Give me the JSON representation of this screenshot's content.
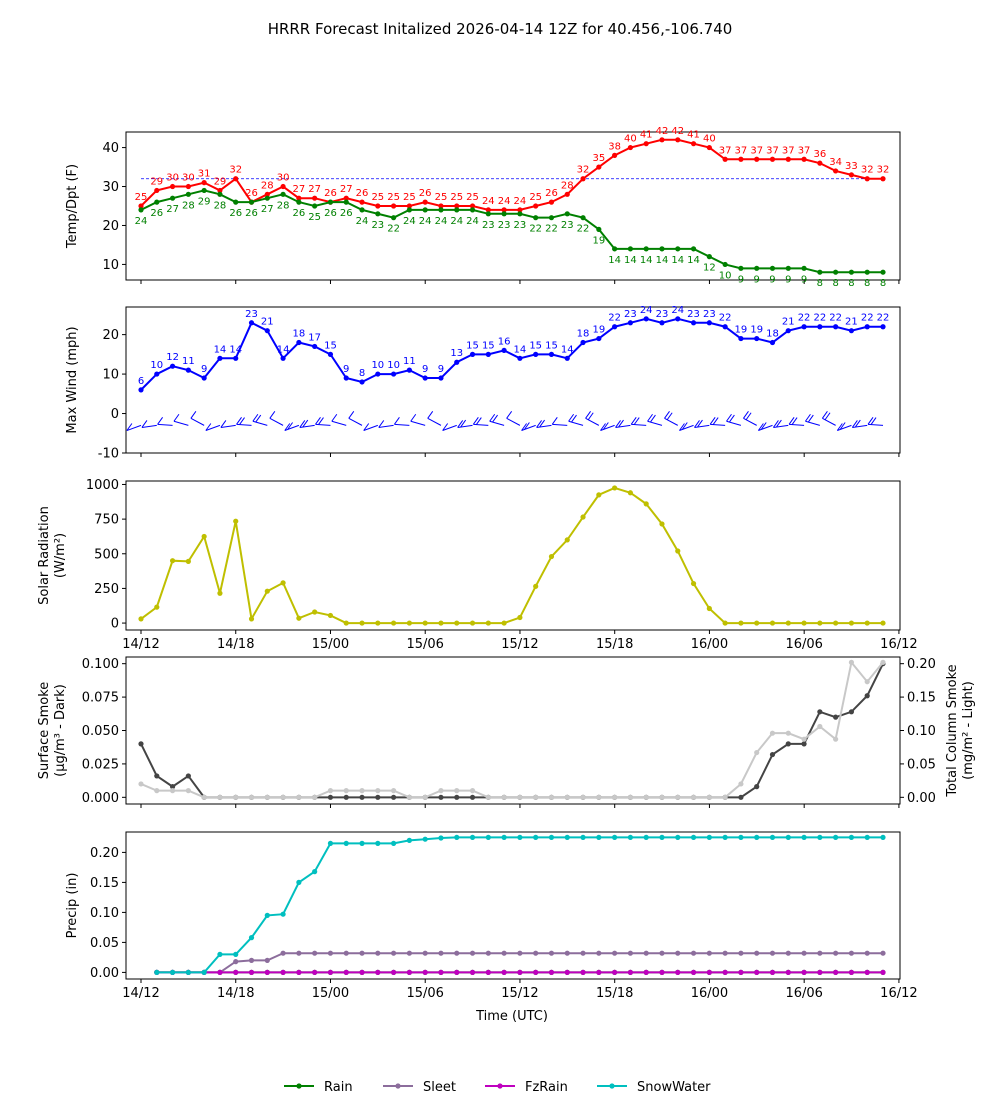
{
  "figure": {
    "title": "HRRR Forecast Initalized 2026-04-14 12Z for 40.456,-106.740",
    "xlabel": "Time (UTC)"
  },
  "legend": {
    "placement": "bottom-center",
    "entries": [
      {
        "label": "Rain",
        "color": "#008000"
      },
      {
        "label": "Sleet",
        "color": "#8c6d9c"
      },
      {
        "label": "FzRain",
        "color": "#bf00bf"
      },
      {
        "label": "SnowWater",
        "color": "#00bfbf"
      }
    ]
  },
  "chart_data": [
    {
      "type": "line",
      "id": "temp",
      "ylabel": "Temp/Dpt (F)",
      "ylim": [
        6,
        44
      ],
      "yticks": [
        10,
        20,
        30,
        40
      ],
      "hline": {
        "value": 32,
        "color": "#0000ff",
        "style": "dashed"
      },
      "series": [
        {
          "name": "Temp",
          "color": "#ff0000",
          "labels": "above",
          "values": [
            25,
            29,
            30,
            30,
            31,
            29,
            32,
            26,
            28,
            30,
            27,
            27,
            26,
            27,
            26,
            25,
            25,
            25,
            26,
            25,
            25,
            25,
            24,
            24,
            24,
            25,
            26,
            28,
            32,
            35,
            38,
            40,
            41,
            42,
            42,
            41,
            40,
            37,
            37,
            37,
            37,
            37,
            37,
            36,
            34,
            33,
            32,
            32
          ]
        },
        {
          "name": "Dewpoint",
          "color": "#008000",
          "labels": "below",
          "values": [
            24,
            26,
            27,
            28,
            29,
            28,
            26,
            26,
            27,
            28,
            26,
            25,
            26,
            26,
            24,
            23,
            22,
            24,
            24,
            24,
            24,
            24,
            23,
            23,
            23,
            22,
            22,
            23,
            22,
            19,
            14,
            14,
            14,
            14,
            14,
            14,
            12,
            10,
            9,
            9,
            9,
            9,
            9,
            8,
            8,
            8,
            8,
            8
          ]
        }
      ]
    },
    {
      "type": "line",
      "id": "wind",
      "ylabel": "Max Wind (mph)",
      "ylim": [
        -10,
        27
      ],
      "yticks": [
        -10,
        0,
        10,
        20
      ],
      "series": [
        {
          "name": "Max Wind",
          "color": "#0000ff",
          "labels": "above",
          "values": [
            6,
            10,
            12,
            11,
            9,
            14,
            14,
            23,
            21,
            14,
            18,
            17,
            15,
            9,
            8,
            10,
            10,
            11,
            9,
            9,
            13,
            15,
            15,
            16,
            14,
            15,
            15,
            14,
            18,
            19,
            22,
            23,
            24,
            23,
            24,
            23,
            23,
            22,
            19,
            19,
            18,
            21,
            22,
            22,
            22,
            21,
            22,
            22
          ]
        }
      ],
      "wind_barbs": {
        "y": -3,
        "color": "#0000ff"
      }
    },
    {
      "type": "line",
      "id": "solar",
      "ylabel": "Solar Radiation (W/m²)",
      "ylim": [
        -50,
        1025
      ],
      "yticks": [
        0,
        250,
        500,
        750,
        1000
      ],
      "series": [
        {
          "name": "Solar Radiation",
          "color": "#bfbf00",
          "values": [
            30,
            115,
            450,
            445,
            625,
            215,
            735,
            30,
            230,
            290,
            35,
            80,
            55,
            0,
            0,
            0,
            0,
            0,
            0,
            0,
            0,
            0,
            0,
            0,
            40,
            265,
            480,
            600,
            765,
            925,
            975,
            940,
            860,
            715,
            520,
            285,
            105,
            0,
            0,
            0,
            0,
            0,
            0,
            0,
            0,
            0,
            0,
            0
          ]
        }
      ]
    },
    {
      "type": "line",
      "id": "smoke",
      "ylabel": "Surface Smoke (μg/m³ - Dark)",
      "ylabel2": "Total Column Smoke (mg/m² - Light)",
      "ylim": [
        -0.005,
        0.105
      ],
      "yticks": [
        0.0,
        0.025,
        0.05,
        0.075,
        0.1
      ],
      "ylim2": [
        -0.01,
        0.21
      ],
      "yticks2": [
        0.0,
        0.05,
        0.1,
        0.15,
        0.2
      ],
      "series": [
        {
          "name": "Surface Smoke",
          "color": "#444444",
          "axis": "left",
          "values": [
            0.04,
            0.016,
            0.008,
            0.016,
            0,
            0,
            0,
            0,
            0,
            0,
            0,
            0,
            0,
            0,
            0,
            0,
            0,
            0,
            0,
            0,
            0,
            0,
            0,
            0,
            0,
            0,
            0,
            0,
            0,
            0,
            0,
            0,
            0,
            0,
            0,
            0,
            0,
            0,
            0,
            0.008,
            0.032,
            0.04,
            0.04,
            0.064,
            0.06,
            0.064,
            0.076,
            0.1
          ]
        },
        {
          "name": "Total Column Smoke",
          "color": "#c8c8c8",
          "axis": "right",
          "values": [
            0.02,
            0.01,
            0.01,
            0.01,
            0,
            0,
            0,
            0,
            0,
            0,
            0,
            0,
            0.01,
            0.01,
            0.01,
            0.01,
            0.01,
            0,
            0,
            0.01,
            0.01,
            0.01,
            0,
            0,
            0,
            0,
            0,
            0,
            0,
            0,
            0,
            0,
            0,
            0,
            0,
            0,
            0,
            0,
            0.02,
            0.067,
            0.096,
            0.096,
            0.087,
            0.106,
            0.087,
            0.202,
            0.173,
            0.202
          ]
        }
      ]
    },
    {
      "type": "line",
      "id": "precip",
      "ylabel": "Precip (in)",
      "ylim": [
        -0.011,
        0.234
      ],
      "yticks": [
        0.0,
        0.05,
        0.1,
        0.15,
        0.2
      ],
      "xtick_labels": [
        "14/12",
        "14/18",
        "15/00",
        "15/06",
        "15/12",
        "15/18",
        "16/00",
        "16/06",
        "16/12"
      ],
      "start_index": 1,
      "series": [
        {
          "name": "Rain",
          "color": "#008000",
          "values": [
            0,
            0,
            0,
            0,
            0,
            0,
            0,
            0,
            0,
            0,
            0,
            0,
            0,
            0,
            0,
            0,
            0,
            0,
            0,
            0,
            0,
            0,
            0,
            0,
            0,
            0,
            0,
            0,
            0,
            0,
            0,
            0,
            0,
            0,
            0,
            0,
            0,
            0,
            0,
            0,
            0,
            0,
            0,
            0,
            0,
            0,
            0
          ]
        },
        {
          "name": "Sleet",
          "color": "#8c6d9c",
          "values": [
            0,
            0,
            0,
            0,
            0,
            0.018,
            0.02,
            0.02,
            0.032,
            0.032,
            0.032,
            0.032,
            0.032,
            0.032,
            0.032,
            0.032,
            0.032,
            0.032,
            0.032,
            0.032,
            0.032,
            0.032,
            0.032,
            0.032,
            0.032,
            0.032,
            0.032,
            0.032,
            0.032,
            0.032,
            0.032,
            0.032,
            0.032,
            0.032,
            0.032,
            0.032,
            0.032,
            0.032,
            0.032,
            0.032,
            0.032,
            0.032,
            0.032,
            0.032,
            0.032,
            0.032,
            0.032
          ]
        },
        {
          "name": "FzRain",
          "color": "#bf00bf",
          "values": [
            0,
            0,
            0,
            0,
            0,
            0,
            0,
            0,
            0,
            0,
            0,
            0,
            0,
            0,
            0,
            0,
            0,
            0,
            0,
            0,
            0,
            0,
            0,
            0,
            0,
            0,
            0,
            0,
            0,
            0,
            0,
            0,
            0,
            0,
            0,
            0,
            0,
            0,
            0,
            0,
            0,
            0,
            0,
            0,
            0,
            0,
            0
          ]
        },
        {
          "name": "SnowWater",
          "color": "#00bfbf",
          "values": [
            0,
            0,
            0,
            0,
            0.03,
            0.03,
            0.058,
            0.095,
            0.097,
            0.15,
            0.168,
            0.215,
            0.215,
            0.215,
            0.215,
            0.215,
            0.22,
            0.222,
            0.224,
            0.225,
            0.225,
            0.225,
            0.225,
            0.225,
            0.225,
            0.225,
            0.225,
            0.225,
            0.225,
            0.225,
            0.225,
            0.225,
            0.225,
            0.225,
            0.225,
            0.225,
            0.225,
            0.225,
            0.225,
            0.225,
            0.225,
            0.225,
            0.225,
            0.225,
            0.225,
            0.225,
            0.225
          ]
        }
      ]
    }
  ]
}
